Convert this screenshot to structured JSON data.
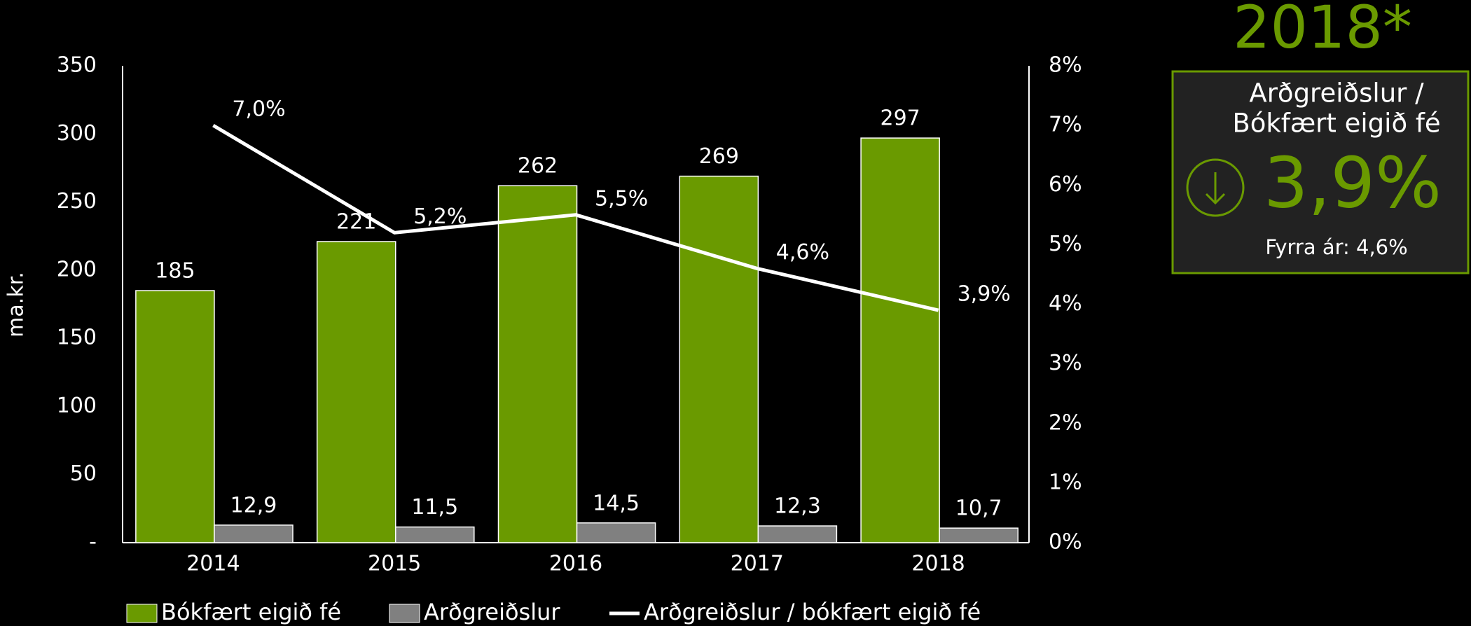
{
  "chart_data": {
    "type": "bar",
    "categories": [
      "2014",
      "2015",
      "2016",
      "2017",
      "2018"
    ],
    "y_label": "ma.kr.",
    "ylim": [
      0,
      350
    ],
    "yticks": [
      {
        "value": 0,
        "label": "-"
      },
      50,
      100,
      150,
      200,
      250,
      300,
      350
    ],
    "y2lim": [
      0,
      8
    ],
    "y2ticks": [
      {
        "value": 0,
        "label": "0%"
      },
      {
        "value": 1,
        "label": "1%"
      },
      {
        "value": 2,
        "label": "2%"
      },
      {
        "value": 3,
        "label": "3%"
      },
      {
        "value": 4,
        "label": "4%"
      },
      {
        "value": 5,
        "label": "5%"
      },
      {
        "value": 6,
        "label": "6%"
      },
      {
        "value": 7,
        "label": "7%"
      },
      {
        "value": 8,
        "label": "8%"
      }
    ],
    "legend": "bottom",
    "series": [
      {
        "name": "Bókfært eigið fé",
        "type": "bar",
        "color": "#6a9a00",
        "values": [
          185,
          221,
          262,
          269,
          297
        ]
      },
      {
        "name": "Arðgreiðslur",
        "type": "bar",
        "color": "#808080",
        "values": [
          12.9,
          11.5,
          14.5,
          12.3,
          10.7
        ],
        "value_labels": [
          "12,9",
          "11,5",
          "14,5",
          "12,3",
          "10,7"
        ]
      },
      {
        "name": "Arðgreiðslur / bókfært eigið fé",
        "type": "line",
        "axis": "y2",
        "color": "#ffffff",
        "values": [
          7.0,
          5.2,
          5.5,
          4.6,
          3.9
        ],
        "value_labels": [
          "7,0%",
          "5,2%",
          "5,5%",
          "4,6%",
          "3,9%"
        ]
      }
    ]
  },
  "panel": {
    "year": "2018*",
    "subtitle_lines": [
      "Arðgreiðslur /",
      "Bókfært eigið fé"
    ],
    "value": "3,9%",
    "previous": "Fyrra ár: 4,6%"
  }
}
